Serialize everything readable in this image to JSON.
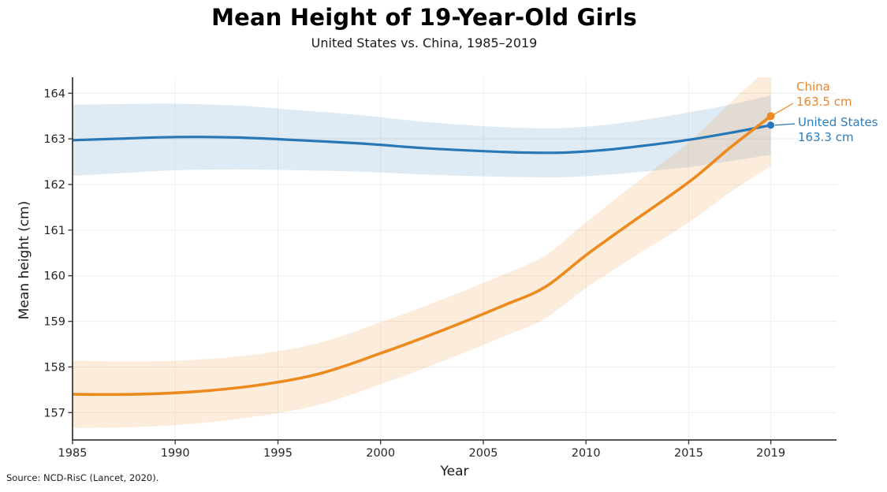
{
  "header": {
    "title": "Mean Height of 19-Year-Old Girls",
    "subtitle": "United States vs. China, 1985–2019"
  },
  "axes": {
    "x_label": "Year",
    "y_label": "Mean height (cm)"
  },
  "annotations": {
    "china": {
      "label": "China",
      "value": "163.5 cm"
    },
    "united_states": {
      "label": "United States",
      "value": "163.3 cm"
    }
  },
  "footer": {
    "source": "Source: NCD-RisC (Lancet, 2020)."
  },
  "colors": {
    "us_line": "#2878b8",
    "us_band": "rgba(40,120,184,0.15)",
    "china_line": "#ec8a1d",
    "china_band": "rgba(240,145,50,0.17)",
    "us_text": "#2e7ebc",
    "china_text": "#e8872e",
    "spine": "#3c3c3c",
    "grid": "#efefef",
    "tick_label": "#262626"
  },
  "chart_data": {
    "type": "line",
    "title": "Mean Height of 19-Year-Old Girls",
    "subtitle": "United States vs. China, 1985–2019",
    "xlabel": "Year",
    "ylabel": "Mean height (cm)",
    "xlim": [
      1985,
      2022.2
    ],
    "ylim": [
      156.4,
      164.35
    ],
    "x_ticks": [
      1985,
      1990,
      1995,
      2000,
      2005,
      2010,
      2015,
      2019
    ],
    "y_ticks": [
      157,
      158,
      159,
      160,
      161,
      162,
      163,
      164
    ],
    "grid": "both-faint",
    "legend_position": "end-of-line-annotations",
    "series": [
      {
        "name": "United States",
        "slug": "united-states",
        "line_color": "#2878b8",
        "band_color": "rgba(40,120,184,0.15)",
        "end_label": "United States",
        "end_value_cm": 163.3,
        "x": [
          1985,
          1987,
          1990,
          1993,
          1996,
          1999,
          2002,
          2005,
          2007,
          2009,
          2011,
          2013,
          2015,
          2017,
          2019
        ],
        "y": [
          162.97,
          163.0,
          163.04,
          163.03,
          162.97,
          162.9,
          162.8,
          162.73,
          162.7,
          162.7,
          162.76,
          162.86,
          162.98,
          163.13,
          163.3
        ],
        "band_half_width": [
          0.78,
          0.76,
          0.73,
          0.7,
          0.66,
          0.62,
          0.58,
          0.55,
          0.54,
          0.54,
          0.55,
          0.57,
          0.6,
          0.62,
          0.65
        ]
      },
      {
        "name": "China",
        "slug": "china",
        "line_color": "#ec8a1d",
        "band_color": "rgba(240,145,50,0.17)",
        "end_label": "China",
        "end_value_cm": 163.5,
        "x": [
          1985,
          1988,
          1991,
          1994,
          1997,
          2000,
          2003,
          2006,
          2008,
          2010,
          2012,
          2015,
          2017,
          2019
        ],
        "y": [
          157.4,
          157.4,
          157.46,
          157.6,
          157.85,
          158.3,
          158.8,
          159.35,
          159.75,
          160.45,
          161.1,
          162.05,
          162.8,
          163.5
        ],
        "band_half_width": [
          0.74,
          0.72,
          0.7,
          0.68,
          0.68,
          0.68,
          0.68,
          0.68,
          0.69,
          0.72,
          0.78,
          0.88,
          0.98,
          1.1
        ]
      }
    ]
  }
}
